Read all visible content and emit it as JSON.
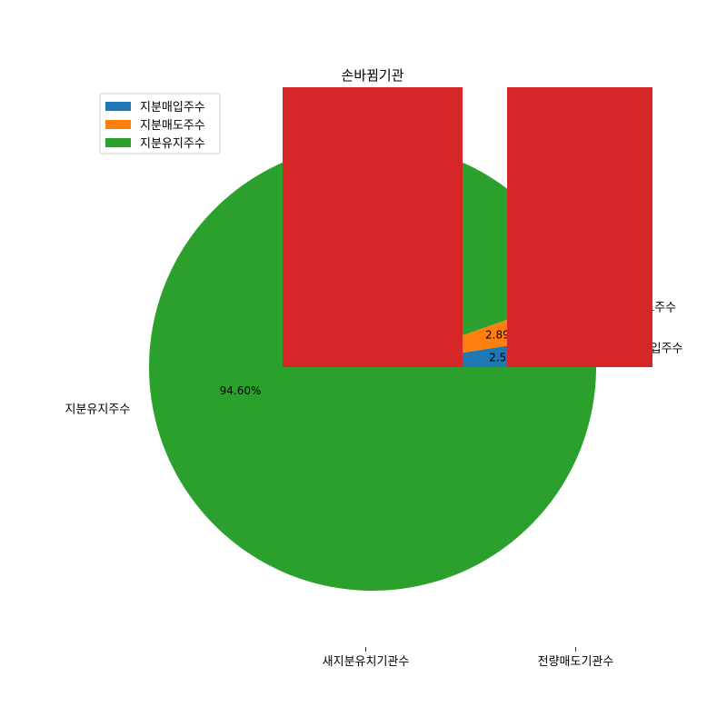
{
  "chart_data": [
    {
      "type": "pie",
      "title": "",
      "slices": [
        {
          "label": "지분매입주수",
          "value": 2.51,
          "pct_label": "2.51%",
          "color": "#1f77b4"
        },
        {
          "label": "지분매도주수",
          "value": 2.89,
          "pct_label": "2.89%",
          "color": "#ff7f0e"
        },
        {
          "label": "지분유지주수",
          "value": 94.6,
          "pct_label": "94.60%",
          "color": "#2ca02c"
        }
      ],
      "legend": {
        "placement": "upper-left",
        "entries": [
          "지분매입주수",
          "지분매도주수",
          "지분유지주수"
        ]
      }
    },
    {
      "type": "bar",
      "title": "손바뀜기관",
      "categories": [
        "새지분유치기관수",
        "전량매도기관수"
      ],
      "series": [
        {
          "color": "#d62728"
        }
      ]
    }
  ]
}
